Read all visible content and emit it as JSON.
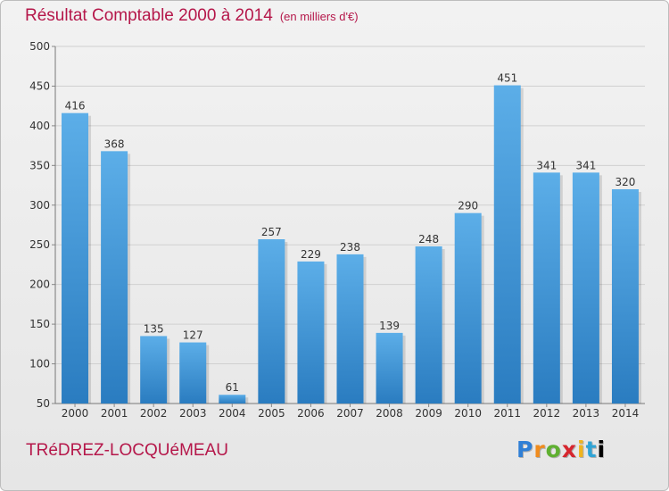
{
  "title": "Résultat Comptable 2000 à 2014",
  "subtitle": "(en milliers d'€)",
  "commune": "TRéDREZ-LOCQUéMEAU",
  "logo_letters": [
    "P",
    "r",
    "o",
    "x",
    "i",
    "t",
    "i"
  ],
  "colors": {
    "bar_light": "#5caee8",
    "bar_dark": "#2a7cc0",
    "title": "#b5174a"
  },
  "chart_data": {
    "type": "bar",
    "categories": [
      "2000",
      "2001",
      "2002",
      "2003",
      "2004",
      "2005",
      "2006",
      "2007",
      "2008",
      "2009",
      "2010",
      "2011",
      "2012",
      "2013",
      "2014"
    ],
    "values": [
      416,
      368,
      135,
      127,
      61,
      257,
      229,
      238,
      139,
      248,
      290,
      451,
      341,
      341,
      320
    ],
    "ylim": [
      50,
      500
    ],
    "yticks": [
      50,
      100,
      150,
      200,
      250,
      300,
      350,
      400,
      450,
      500
    ],
    "grid": true,
    "title": "Résultat Comptable 2000 à 2014",
    "xlabel": "",
    "ylabel": ""
  }
}
